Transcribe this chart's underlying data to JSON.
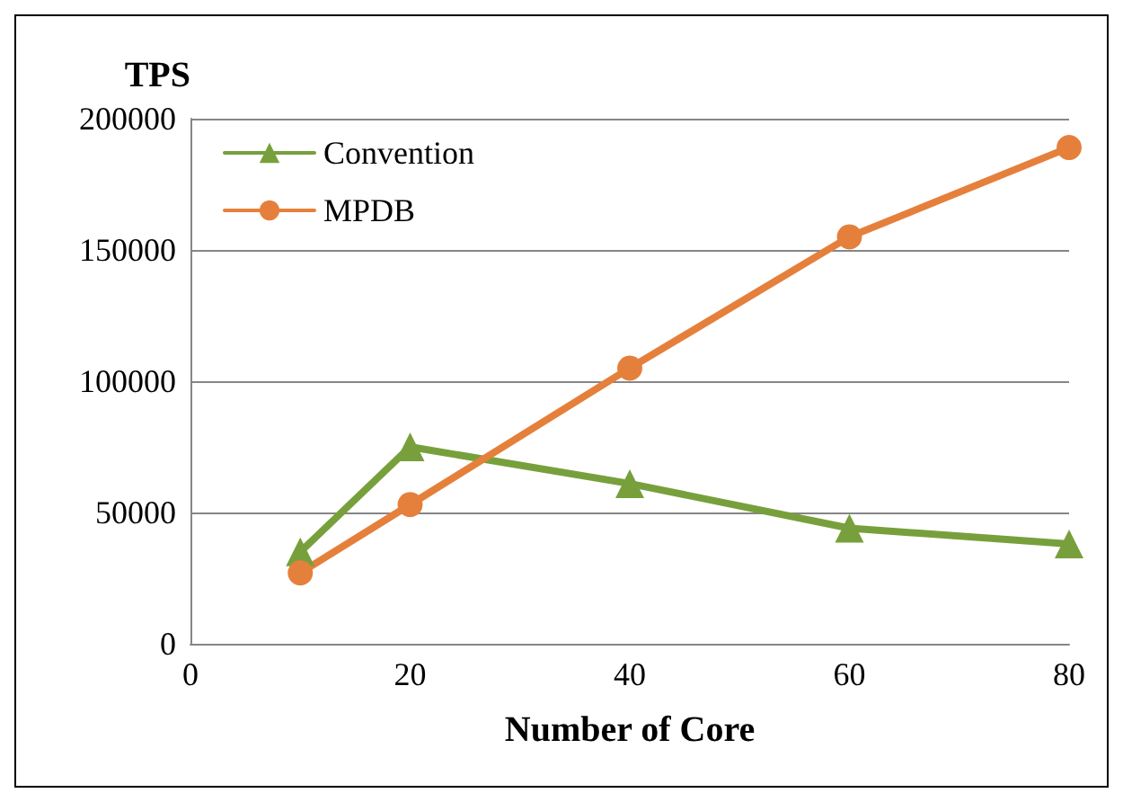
{
  "chart_data": {
    "type": "line",
    "ylabel": "TPS",
    "xlabel": "Number of Core",
    "x": [
      10,
      20,
      40,
      60,
      80
    ],
    "series": [
      {
        "name": "Convention",
        "color": "#77a03c",
        "marker": "triangle",
        "values": [
          35000,
          75000,
          61000,
          44000,
          38000
        ]
      },
      {
        "name": "MPDB",
        "color": "#e5803c",
        "marker": "circle",
        "values": [
          27000,
          53000,
          105000,
          155000,
          189000
        ]
      }
    ],
    "xlim": [
      0,
      80
    ],
    "xticks": [
      0,
      20,
      40,
      60,
      80
    ],
    "ylim": [
      0,
      200000
    ],
    "yticks": [
      0,
      50000,
      100000,
      150000,
      200000
    ],
    "grid": "y",
    "legend": "top left",
    "line_style": "solid"
  }
}
